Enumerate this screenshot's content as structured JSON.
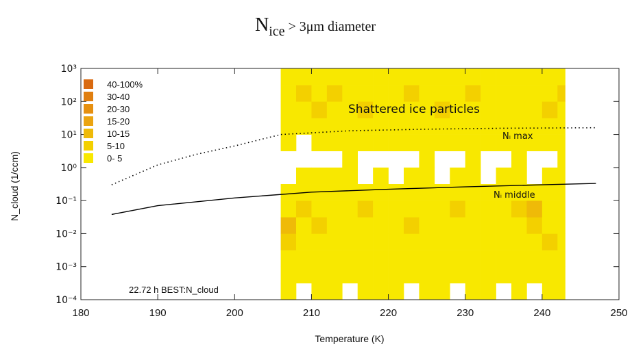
{
  "chart_data": {
    "type": "heatmap",
    "title": [
      "N",
      "ice",
      " > 3μm diameter"
    ],
    "xlabel": "Temperature (K)",
    "ylabel": "N_cloud (1/ccm)",
    "xlim": [
      180,
      250
    ],
    "xticks": [
      180,
      190,
      200,
      210,
      220,
      230,
      240,
      250
    ],
    "ylim": [
      0.0001,
      1000
    ],
    "yscale": "log",
    "yticks": [
      {
        "value": 0.0001,
        "label": "10⁻⁴"
      },
      {
        "value": 0.001,
        "label": "10⁻³"
      },
      {
        "value": 0.01,
        "label": "10⁻²"
      },
      {
        "value": 0.1,
        "label": "10⁻¹"
      },
      {
        "value": 1,
        "label": "10⁰"
      },
      {
        "value": 10,
        "label": "10¹"
      },
      {
        "value": 100,
        "label": "10²"
      },
      {
        "value": 1000,
        "label": "10³"
      }
    ],
    "xbins": [
      206,
      208,
      210,
      212,
      214,
      216,
      218,
      220,
      222,
      224,
      226,
      228,
      230,
      232,
      234,
      236,
      238,
      240,
      242,
      243
    ],
    "ybins": [
      0.0001,
      0.000316,
      0.001,
      0.00316,
      0.01,
      0.0316,
      0.1,
      0.316,
      1,
      3.16,
      10,
      31.6,
      100,
      316,
      1000
    ],
    "values": [
      [
        3,
        null,
        3,
        3,
        null,
        3,
        3,
        3,
        null,
        3,
        3,
        null,
        3,
        3,
        null,
        3,
        null,
        3,
        3
      ],
      [
        3,
        3,
        3,
        3,
        3,
        3,
        3,
        3,
        3,
        3,
        3,
        3,
        3,
        3,
        3,
        3,
        3,
        3,
        3
      ],
      [
        3,
        3,
        3,
        3,
        3,
        3,
        3,
        3,
        3,
        3,
        3,
        3,
        3,
        3,
        3,
        3,
        3,
        3,
        3
      ],
      [
        7,
        3,
        3,
        3,
        3,
        3,
        3,
        3,
        3,
        3,
        3,
        3,
        3,
        3,
        3,
        3,
        3,
        7,
        3
      ],
      [
        12,
        3,
        7,
        3,
        3,
        3,
        3,
        3,
        7,
        3,
        3,
        3,
        3,
        3,
        3,
        3,
        7,
        3,
        3
      ],
      [
        3,
        7,
        3,
        3,
        3,
        7,
        3,
        3,
        3,
        3,
        3,
        7,
        3,
        3,
        3,
        7,
        12,
        3,
        3
      ],
      [
        3,
        3,
        3,
        3,
        3,
        3,
        3,
        3,
        3,
        3,
        3,
        3,
        3,
        3,
        3,
        3,
        3,
        3,
        3
      ],
      [
        null,
        3,
        3,
        3,
        3,
        null,
        3,
        null,
        3,
        3,
        null,
        3,
        3,
        null,
        3,
        3,
        null,
        3,
        3
      ],
      [
        null,
        null,
        null,
        null,
        3,
        null,
        null,
        null,
        null,
        3,
        null,
        null,
        3,
        null,
        null,
        3,
        null,
        null,
        3
      ],
      [
        3,
        null,
        3,
        3,
        3,
        3,
        3,
        3,
        3,
        3,
        3,
        3,
        3,
        3,
        3,
        3,
        3,
        3,
        3
      ],
      [
        3,
        3,
        3,
        3,
        3,
        3,
        3,
        3,
        3,
        3,
        3,
        3,
        3,
        3,
        3,
        3,
        3,
        3,
        3
      ],
      [
        3,
        3,
        7,
        3,
        3,
        7,
        3,
        3,
        3,
        3,
        7,
        3,
        3,
        3,
        3,
        3,
        3,
        7,
        3
      ],
      [
        3,
        7,
        3,
        7,
        3,
        3,
        3,
        3,
        7,
        3,
        3,
        3,
        7,
        3,
        3,
        3,
        3,
        3,
        7
      ],
      [
        3,
        3,
        3,
        3,
        3,
        3,
        3,
        3,
        3,
        3,
        3,
        3,
        3,
        3,
        3,
        3,
        3,
        3,
        3
      ]
    ],
    "scale": {
      "bounds": [
        0,
        5,
        10,
        15,
        20,
        30,
        40,
        100
      ],
      "colors": [
        "#f8e800",
        "#f3d000",
        "#efba08",
        "#eba410",
        "#e69010",
        "#e07f10",
        "#d96a10"
      ],
      "labels": [
        "0- 5",
        "5-10",
        "10-15",
        "15-20",
        "20-30",
        "30-40",
        "40-100%"
      ]
    },
    "series": [
      {
        "name": "Nᵢ max",
        "style": "dotted",
        "color": "#000000",
        "x": [
          184,
          190,
          195,
          200,
          206,
          215,
          225,
          235,
          247
        ],
        "values": [
          0.3,
          1.2,
          2.5,
          4.5,
          10,
          13,
          14.5,
          15.5,
          16
        ]
      },
      {
        "name": "Nᵢ middle",
        "style": "solid",
        "color": "#000000",
        "x": [
          184,
          190,
          200,
          210,
          220,
          230,
          240,
          247
        ],
        "values": [
          0.038,
          0.07,
          0.12,
          0.18,
          0.22,
          0.26,
          0.3,
          0.33
        ]
      }
    ],
    "annotations": [
      "Shattered ice particles",
      "22.72 h BEST:N_cloud"
    ]
  }
}
